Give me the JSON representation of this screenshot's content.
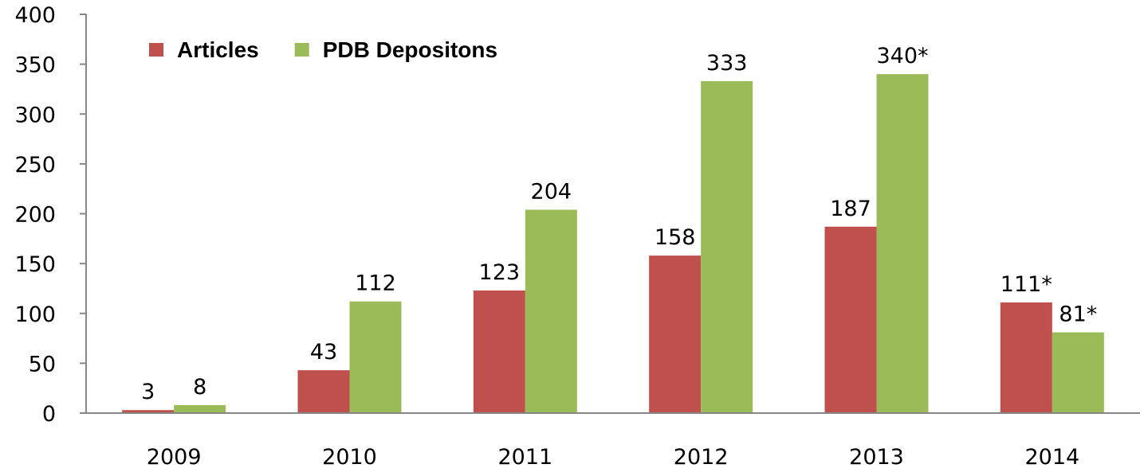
{
  "chart_data": {
    "type": "bar",
    "title": "",
    "xlabel": "",
    "ylabel": "",
    "ylim": [
      0,
      400
    ],
    "ytick_step": 50,
    "categories": [
      "2009",
      "2010",
      "2011",
      "2012",
      "2013",
      "2014"
    ],
    "series": [
      {
        "name": "Articles",
        "color": "#c0504d",
        "values": [
          3,
          43,
          123,
          158,
          187,
          111
        ],
        "labels": [
          "3",
          "43",
          "123",
          "158",
          "187",
          "111*"
        ]
      },
      {
        "name": "PDB Depositons",
        "color": "#9bbb59",
        "values": [
          8,
          112,
          204,
          333,
          340,
          81
        ],
        "labels": [
          "8",
          "112",
          "204",
          "333",
          "340*",
          "81*"
        ]
      }
    ],
    "legend": "top-left",
    "grid": false
  }
}
